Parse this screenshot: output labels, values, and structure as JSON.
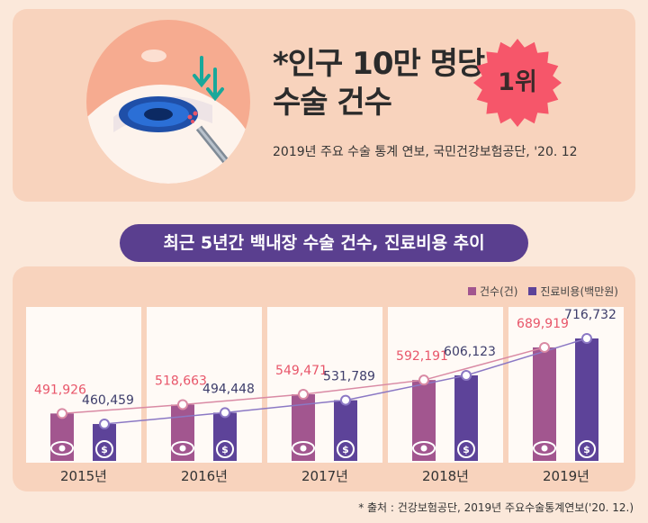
{
  "header": {
    "headline_line1": "*인구 10만 명당",
    "headline_line2": "수술 건수",
    "badge": "1위",
    "source": "2019년 주요 수술 통계 연보, 국민건강보험공단, '20. 12"
  },
  "section_title": "최근 5년간 백내장 수술 건수, 진료비용 추이",
  "legend": {
    "count": "건수(건)",
    "cost": "진료비용(백만원)"
  },
  "colors": {
    "count": "#a2568f",
    "cost": "#5d4399",
    "count_label": "#e8566a",
    "cost_label": "#3d3d6b",
    "accent": "#f6566a"
  },
  "chart_data": {
    "type": "bar",
    "categories": [
      "2015년",
      "2016년",
      "2017년",
      "2018년",
      "2019년"
    ],
    "series": [
      {
        "name": "건수(건)",
        "values": [
          491926,
          518663,
          549471,
          592191,
          689919
        ]
      },
      {
        "name": "진료비용(백만원)",
        "values": [
          460459,
          494448,
          531789,
          606123,
          716732
        ]
      }
    ],
    "value_labels": {
      "count": [
        "491,926",
        "518,663",
        "549,471",
        "592,191",
        "689,919"
      ],
      "cost": [
        "460,459",
        "494,448",
        "531,789",
        "606,123",
        "716,732"
      ]
    }
  },
  "footnote": "* 출처 : 건강보험공단, 2019년 주요수술통계연보('20. 12.)"
}
